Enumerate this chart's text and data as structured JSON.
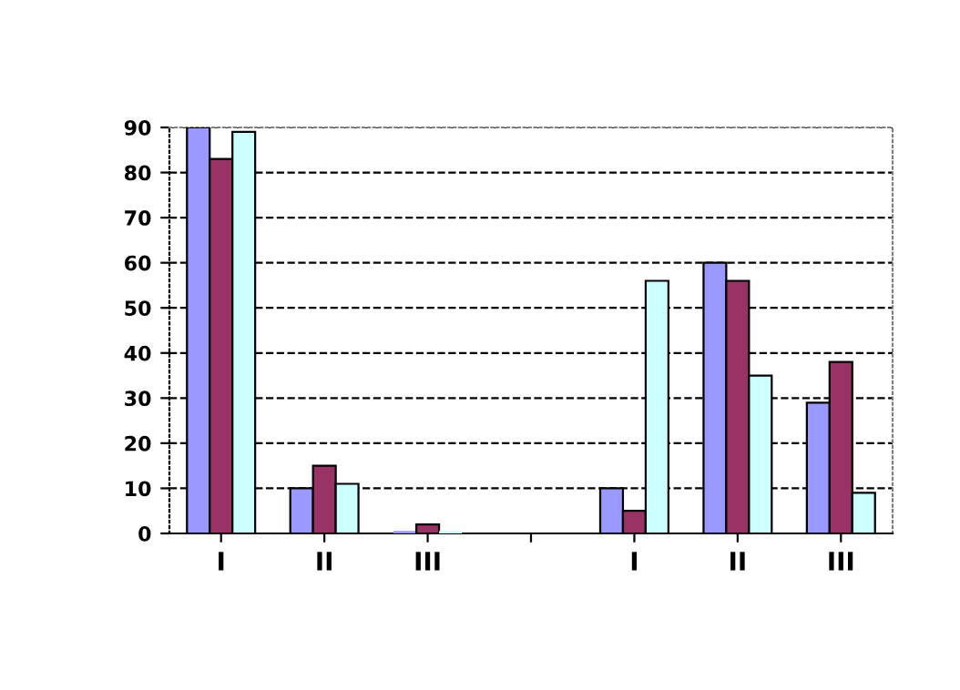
{
  "chart_data": {
    "type": "bar",
    "categories": [
      "I",
      "II",
      "III",
      null,
      "I",
      "II",
      "III"
    ],
    "series": [
      {
        "color": "#9999ff",
        "values": [
          90,
          10,
          0,
          null,
          10,
          60,
          29
        ]
      },
      {
        "color": "#993366",
        "values": [
          83,
          15,
          2,
          null,
          5,
          56,
          38
        ]
      },
      {
        "color": "#ccffff",
        "values": [
          89,
          11,
          0,
          null,
          56,
          35,
          9
        ]
      }
    ],
    "ylim": [
      0,
      90
    ],
    "yticks": [
      0,
      10,
      20,
      30,
      40,
      50,
      60,
      70,
      80,
      90
    ],
    "grid": "y",
    "legend": false
  }
}
